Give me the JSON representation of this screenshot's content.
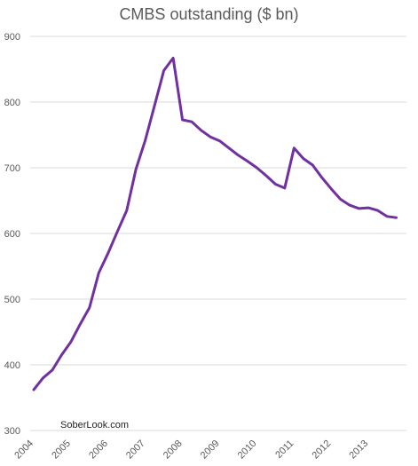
{
  "chart_data": {
    "type": "line",
    "title": "CMBS outstanding ($ bn)",
    "xlabel": "",
    "ylabel": "",
    "ylim": [
      300,
      900
    ],
    "yticks": [
      300,
      400,
      500,
      600,
      700,
      800,
      900
    ],
    "xlim": [
      2004,
      2014
    ],
    "xticks": [
      2004,
      2005,
      2006,
      2007,
      2008,
      2009,
      2010,
      2011,
      2012,
      2013
    ],
    "grid": "horizontal",
    "legend": "none",
    "line_color": "#7030A0",
    "annotation": "SoberLook.com",
    "series": [
      {
        "x": [
          2004.0,
          2004.25,
          2004.5,
          2004.75,
          2005.0,
          2005.25,
          2005.5,
          2005.75,
          2006.0,
          2006.25,
          2006.5,
          2006.75,
          2007.0,
          2007.25,
          2007.5,
          2007.75,
          2008.0,
          2008.25,
          2008.5,
          2008.75,
          2009.0,
          2009.25,
          2009.5,
          2009.75,
          2010.0,
          2010.25,
          2010.5,
          2010.75,
          2011.0,
          2011.25,
          2011.5,
          2011.75,
          2012.0,
          2012.25,
          2012.5,
          2012.75,
          2013.0,
          2013.25,
          2013.5,
          2013.75
        ],
        "values": [
          362,
          380,
          392,
          415,
          435,
          462,
          487,
          540,
          570,
          603,
          635,
          698,
          742,
          795,
          848,
          867,
          773,
          770,
          757,
          747,
          741,
          730,
          719,
          710,
          700,
          688,
          675,
          669,
          730,
          714,
          704,
          685,
          668,
          652,
          643,
          638,
          639,
          635,
          626,
          624
        ]
      }
    ]
  }
}
